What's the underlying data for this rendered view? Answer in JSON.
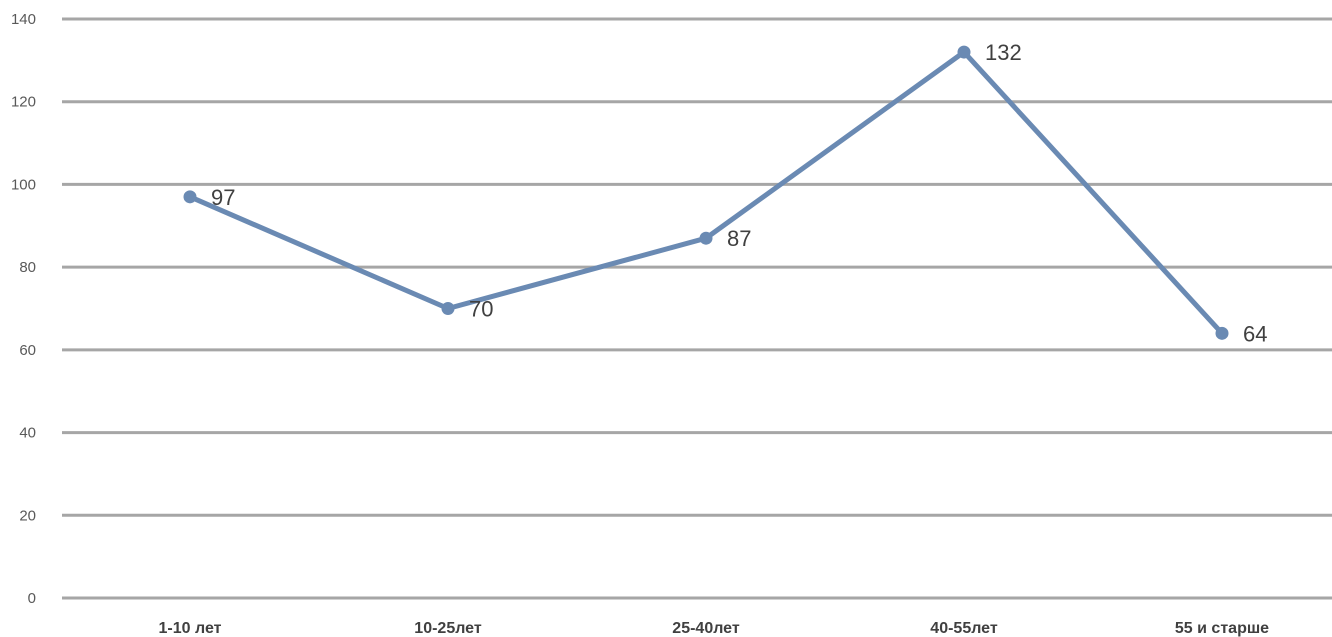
{
  "chart_data": {
    "type": "line",
    "title": "",
    "xlabel": "",
    "ylabel": "",
    "categories": [
      "1-10 лет",
      "10-25лет",
      "25-40лет",
      "40-55лет",
      "55 и старше"
    ],
    "series": [
      {
        "values": [
          97,
          70,
          87,
          132,
          64
        ],
        "color": "#6a8ab3"
      }
    ],
    "data_labels": [
      "97",
      "70",
      "87",
      "132",
      "64"
    ],
    "ylim": [
      0,
      140
    ],
    "yticks": [
      0,
      20,
      40,
      60,
      80,
      100,
      120,
      140
    ],
    "ytick_labels": [
      "0",
      "20",
      "40",
      "60",
      "80",
      "100",
      "120",
      "140"
    ],
    "grid": true,
    "grid_color": "#a6a6a6",
    "legend": "none"
  }
}
